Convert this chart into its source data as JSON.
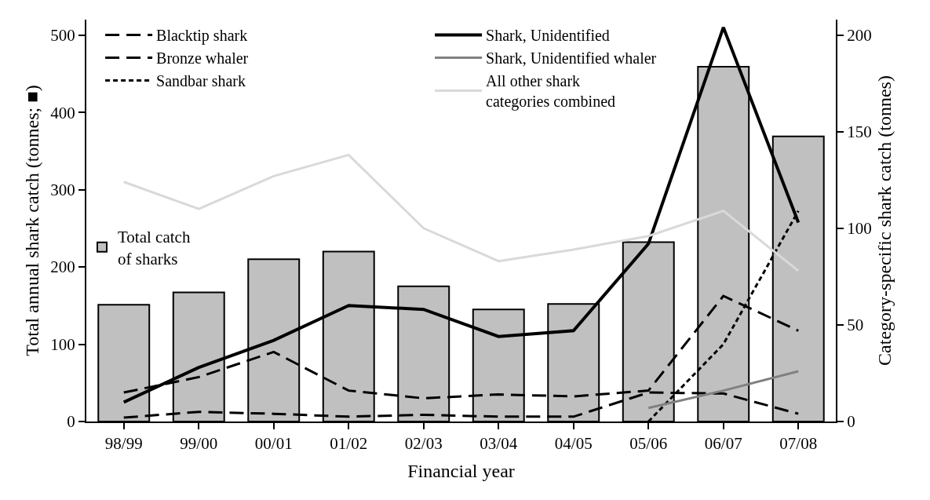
{
  "chart_data": {
    "type": "bar",
    "xlabel": "Financial year",
    "ylabel": "Total annual shark catch (tonnes; ■)",
    "y2label": "Category-specific shark catch (tonnes)",
    "categories": [
      "98/99",
      "99/00",
      "00/01",
      "01/02",
      "02/03",
      "03/04",
      "04/05",
      "05/06",
      "06/07",
      "07/08"
    ],
    "series": [
      {
        "name": "Total catch of sharks",
        "color": "#c0c0c0",
        "values": [
          151,
          167,
          210,
          220,
          175,
          145,
          152,
          232,
          459,
          369
        ]
      },
      {
        "name": "Blacktip shark",
        "type": "line",
        "axis": "y2",
        "color": "#000000",
        "line_style": "dashed",
        "values": [
          15,
          23,
          36,
          16,
          12,
          14,
          13,
          16,
          65,
          47
        ]
      },
      {
        "name": "Bronze whaler",
        "type": "line",
        "axis": "y2",
        "color": "#000000",
        "line_style": "dashed",
        "values": [
          2,
          5,
          4,
          2.5,
          3.5,
          2.5,
          2.5,
          15,
          14.5,
          4
        ]
      },
      {
        "name": "Sandbar shark",
        "type": "line",
        "axis": "y2",
        "color": "#000000",
        "line_style": "dotted",
        "values": [
          null,
          null,
          null,
          null,
          null,
          null,
          null,
          0,
          40,
          109
        ]
      },
      {
        "name": "Shark, Unidentified",
        "type": "line",
        "axis": "y2",
        "color": "#000000",
        "line_style": "solid",
        "values": [
          10,
          28,
          42,
          60,
          58,
          44,
          47,
          92,
          204,
          103
        ]
      },
      {
        "name": "Shark, Unidentified whaler",
        "type": "line",
        "axis": "y2",
        "color": "#808080",
        "line_style": "solid",
        "values": [
          null,
          null,
          null,
          null,
          null,
          null,
          null,
          7,
          16,
          26
        ]
      },
      {
        "name": "All other shark categories combined",
        "type": "line",
        "axis": "y2",
        "color": "#d9d9d9",
        "line_style": "solid",
        "values": [
          124,
          110,
          127,
          138,
          100,
          83,
          89,
          96,
          109,
          78
        ]
      }
    ],
    "ylim": [
      0,
      520
    ],
    "yticks": [
      0,
      100,
      200,
      300,
      400,
      500
    ],
    "y2lim": [
      0,
      208
    ],
    "y2ticks": [
      0,
      50,
      100,
      150,
      200
    ],
    "legend": "top"
  }
}
